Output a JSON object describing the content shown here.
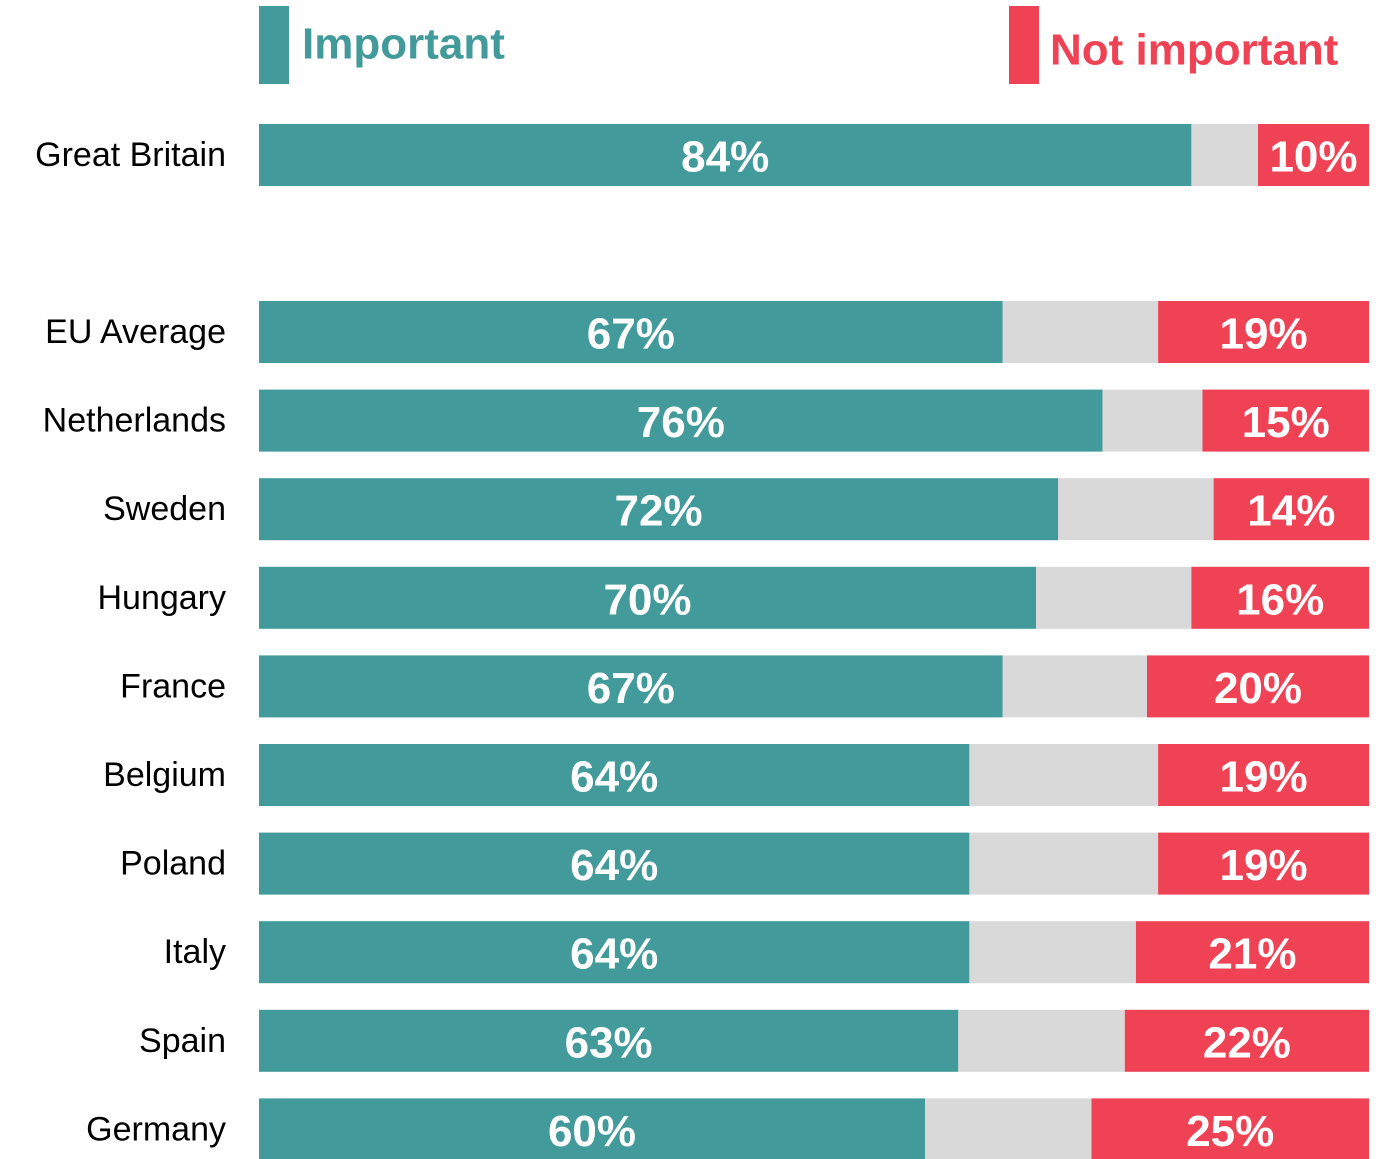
{
  "chart_data": {
    "type": "stacked_bar_horizontal",
    "categories": [
      "Great Britain",
      "EU Average",
      "Netherlands",
      "Sweden",
      "Hungary",
      "France",
      "Belgium",
      "Poland",
      "Italy",
      "Spain",
      "Germany"
    ],
    "xlim": [
      0,
      100
    ],
    "series": [
      {
        "name": "Important",
        "color": "#429a9a",
        "values": [
          84,
          67,
          76,
          72,
          70,
          67,
          64,
          64,
          64,
          63,
          60
        ],
        "value_labels": [
          "84%",
          "67%",
          "76%",
          "72%",
          "70%",
          "67%",
          "64%",
          "64%",
          "64%",
          "63%",
          "60%"
        ]
      },
      {
        "color": "#d9d9d9",
        "values": [
          6,
          14,
          9,
          14,
          14,
          13,
          17,
          17,
          15,
          15,
          15
        ]
      },
      {
        "name": "Not important",
        "color": "#f04255",
        "values": [
          10,
          19,
          15,
          14,
          16,
          20,
          19,
          19,
          21,
          22,
          25
        ],
        "value_labels": [
          "10%",
          "19%",
          "15%",
          "14%",
          "16%",
          "20%",
          "19%",
          "19%",
          "21%",
          "22%",
          "25%"
        ]
      }
    ]
  }
}
